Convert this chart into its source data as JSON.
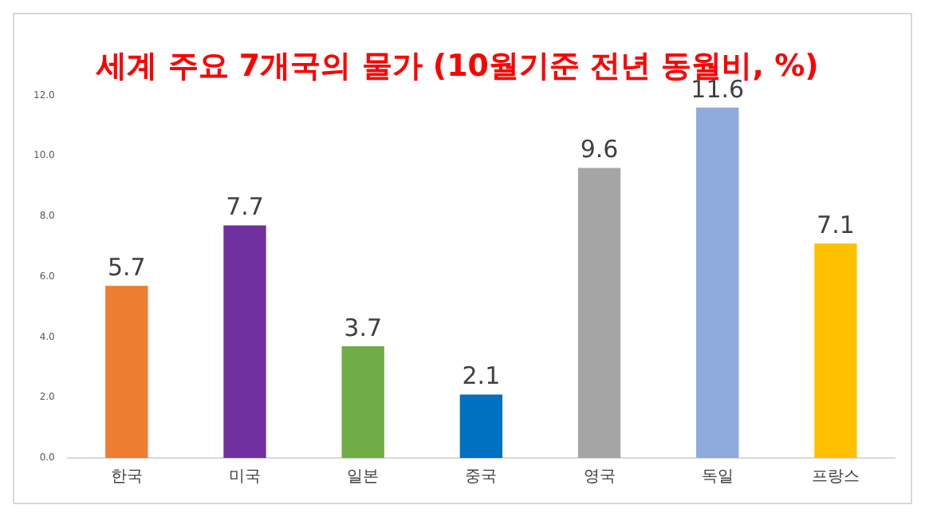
{
  "chart_data": {
    "type": "bar",
    "title": "세계 주요 7개국의 물가 (10월기준 전년 동월비, %)",
    "categories": [
      "한국",
      "미국",
      "일본",
      "중국",
      "영국",
      "독일",
      "프랑스"
    ],
    "values": [
      5.7,
      7.7,
      3.7,
      2.1,
      9.6,
      11.6,
      7.1
    ],
    "colors": [
      "#ed7d31",
      "#7030a0",
      "#70ad47",
      "#0070c0",
      "#a5a5a5",
      "#8faadc",
      "#ffc000"
    ],
    "ylim": [
      0,
      12
    ],
    "yticks": [
      {
        "value": 0,
        "label": "0.0"
      },
      {
        "value": 2,
        "label": "2.0"
      },
      {
        "value": 4,
        "label": "4.0"
      },
      {
        "value": 6,
        "label": "6.0"
      },
      {
        "value": 8,
        "label": "8.0"
      },
      {
        "value": 10,
        "label": "10.0"
      },
      {
        "value": 12,
        "label": "12.0"
      }
    ],
    "grid": false,
    "legend": false,
    "data_labels": true
  }
}
